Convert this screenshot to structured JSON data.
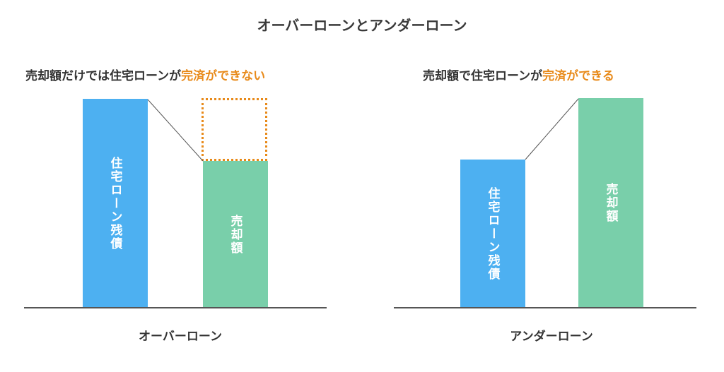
{
  "title": "オーバーローンとアンダーローン",
  "left": {
    "subtitle_prefix": "売却額だけでは住宅ローンが",
    "subtitle_highlight": "完済",
    "subtitle_suffix": "ができない",
    "loan_label": "住宅ローン残債",
    "sale_label": "売却額",
    "caption": "オーバーローン"
  },
  "right": {
    "subtitle_prefix": "売却額で住宅ローンが",
    "subtitle_highlight": "完済",
    "subtitle_suffix": "ができる",
    "loan_label": "住宅ローン残債",
    "sale_label": "売却額",
    "caption": "アンダーローン"
  },
  "colors": {
    "loan": "#4db0f1",
    "sale": "#79cfaa",
    "highlight": "#e88a1a",
    "baseline": "#555555"
  }
}
